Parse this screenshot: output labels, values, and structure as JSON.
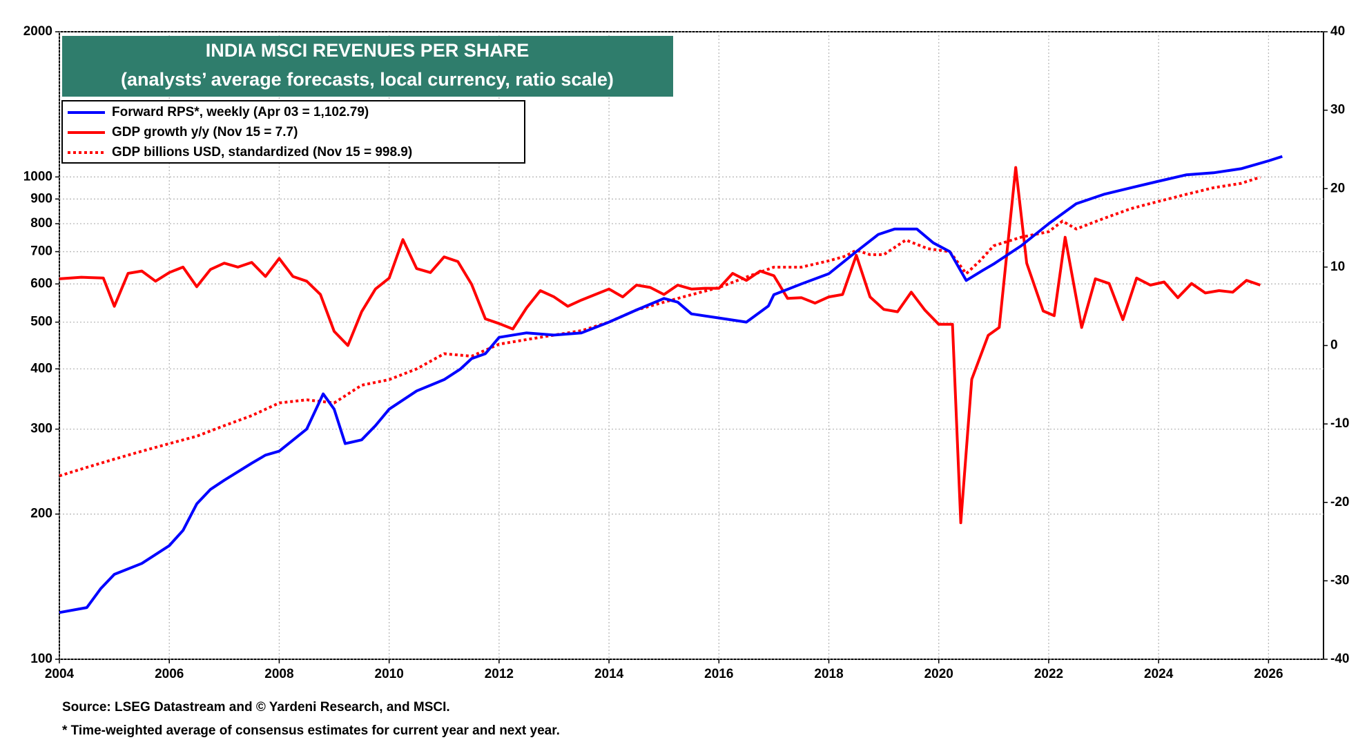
{
  "chart_data": {
    "type": "line",
    "title": "INDIA MSCI REVENUES PER SHARE",
    "subtitle": "(analysts’ average forecasts, local currency, ratio scale)",
    "source": "Source: LSEG Datastream and © Yardeni Research, and MSCI.",
    "note": "* Time-weighted average of consensus estimates for current year and next year.",
    "legend": "upper left",
    "grid": true,
    "log_y": true,
    "xlim": [
      2004,
      2027
    ],
    "xticks": [
      2004,
      2006,
      2008,
      2010,
      2012,
      2014,
      2016,
      2018,
      2020,
      2022,
      2024,
      2026
    ],
    "ylim": [
      100,
      2000
    ],
    "yticks": [
      100,
      200,
      300,
      400,
      500,
      600,
      700,
      800,
      900,
      1000,
      2000
    ],
    "y2lim": [
      -40,
      40
    ],
    "y2ticks": [
      -40,
      -30,
      -20,
      -10,
      0,
      10,
      20,
      30,
      40
    ],
    "series": [
      {
        "name": "Forward RPS*, weekly (Apr 03 = 1,102.79)",
        "color": "#0000ff",
        "style": "solid",
        "x": [
          2004.0,
          2004.5,
          2004.75,
          2005.0,
          2005.5,
          2006.0,
          2006.25,
          2006.5,
          2006.75,
          2007.0,
          2007.5,
          2007.75,
          2008.0,
          2008.5,
          2008.8,
          2009.0,
          2009.2,
          2009.5,
          2009.75,
          2010.0,
          2010.5,
          2011.0,
          2011.3,
          2011.5,
          2011.75,
          2012.0,
          2012.5,
          2013.0,
          2013.5,
          2014.0,
          2014.5,
          2015.0,
          2015.25,
          2015.5,
          2016.0,
          2016.5,
          2016.9,
          2017.0,
          2017.5,
          2018.0,
          2018.5,
          2018.9,
          2019.2,
          2019.6,
          2019.9,
          2020.2,
          2020.5,
          2020.8,
          2021.0,
          2021.5,
          2022.0,
          2022.5,
          2023.0,
          2023.5,
          2024.0,
          2024.5,
          2025.0,
          2025.5,
          2026.0,
          2026.25
        ],
        "values": [
          125,
          128,
          140,
          150,
          158,
          172,
          185,
          210,
          225,
          235,
          255,
          265,
          270,
          300,
          355,
          330,
          280,
          285,
          305,
          330,
          360,
          380,
          400,
          420,
          430,
          465,
          475,
          470,
          475,
          500,
          530,
          560,
          550,
          520,
          510,
          500,
          540,
          570,
          600,
          630,
          700,
          760,
          780,
          780,
          730,
          700,
          610,
          640,
          660,
          720,
          800,
          880,
          920,
          950,
          980,
          1010,
          1020,
          1040,
          1080,
          1103
        ]
      },
      {
        "name": "GDP growth y/y (Nov 15 = 7.7)",
        "color": "#ff0000",
        "style": "solid",
        "axis": "y2",
        "x": [
          2004.0,
          2004.4,
          2004.8,
          2005.0,
          2005.25,
          2005.5,
          2005.75,
          2006.0,
          2006.25,
          2006.5,
          2006.75,
          2007.0,
          2007.25,
          2007.5,
          2007.75,
          2008.0,
          2008.25,
          2008.5,
          2008.75,
          2009.0,
          2009.25,
          2009.5,
          2009.75,
          2010.0,
          2010.25,
          2010.5,
          2010.75,
          2011.0,
          2011.25,
          2011.5,
          2011.75,
          2012.0,
          2012.25,
          2012.5,
          2012.75,
          2013.0,
          2013.25,
          2013.5,
          2013.75,
          2014.0,
          2014.25,
          2014.5,
          2014.75,
          2015.0,
          2015.25,
          2015.5,
          2015.75,
          2016.0,
          2016.25,
          2016.5,
          2016.75,
          2017.0,
          2017.25,
          2017.5,
          2017.75,
          2018.0,
          2018.25,
          2018.5,
          2018.75,
          2019.0,
          2019.25,
          2019.5,
          2019.75,
          2020.0,
          2020.25,
          2020.4,
          2020.6,
          2020.9,
          2021.1,
          2021.4,
          2021.6,
          2021.9,
          2022.1,
          2022.3,
          2022.6,
          2022.85,
          2023.1,
          2023.35,
          2023.6,
          2023.85,
          2024.1,
          2024.35,
          2024.6,
          2024.85,
          2025.1,
          2025.35,
          2025.6,
          2025.85
        ],
        "values": [
          8.5,
          8.7,
          8.6,
          5,
          9.2,
          9.5,
          8.2,
          9.3,
          10,
          7.5,
          9.7,
          10.5,
          10,
          10.6,
          8.8,
          11.1,
          8.8,
          8.2,
          6.5,
          1.8,
          0,
          4.3,
          7.2,
          8.6,
          13.5,
          9.8,
          9.3,
          11.3,
          10.7,
          7.8,
          3.4,
          2.8,
          2.1,
          4.8,
          7,
          6.2,
          5,
          5.8,
          6.5,
          7.2,
          6.2,
          7.7,
          7.4,
          6.5,
          7.7,
          7.2,
          7.3,
          7.3,
          9.2,
          8.3,
          9.5,
          8.9,
          6,
          6.1,
          5.4,
          6.2,
          6.5,
          11.5,
          6.2,
          4.6,
          4.3,
          6.8,
          4.5,
          2.7,
          2.7,
          -22.6,
          -4.3,
          1.3,
          2.3,
          22.7,
          10.5,
          4.4,
          3.8,
          13.8,
          2.3,
          8.5,
          7.9,
          3.3,
          8.6,
          7.7,
          8.1,
          6.1,
          7.9,
          6.7,
          7.0,
          6.8,
          8.3,
          7.7
        ]
      },
      {
        "name": "GDP billions USD, standardized (Nov 15 = 998.9)",
        "color": "#ff0000",
        "style": "dotted",
        "x": [
          2004.0,
          2004.5,
          2005.0,
          2005.5,
          2006.0,
          2006.5,
          2007.0,
          2007.5,
          2008.0,
          2008.5,
          2009.0,
          2009.5,
          2010.0,
          2010.5,
          2011.0,
          2011.5,
          2012.0,
          2012.5,
          2013.0,
          2013.5,
          2014.0,
          2014.5,
          2015.0,
          2015.5,
          2016.0,
          2016.5,
          2017.0,
          2017.5,
          2018.0,
          2018.3,
          2018.5,
          2018.75,
          2019.0,
          2019.4,
          2019.8,
          2020.2,
          2020.5,
          2020.75,
          2021.0,
          2021.5,
          2022.0,
          2022.25,
          2022.5,
          2023.0,
          2023.5,
          2024.0,
          2024.5,
          2025.0,
          2025.5,
          2025.85
        ],
        "values": [
          240,
          250,
          260,
          270,
          280,
          290,
          305,
          320,
          340,
          345,
          340,
          370,
          380,
          400,
          430,
          425,
          450,
          460,
          470,
          480,
          500,
          530,
          550,
          570,
          590,
          620,
          650,
          650,
          670,
          685,
          705,
          690,
          690,
          740,
          710,
          700,
          630,
          670,
          720,
          750,
          770,
          810,
          780,
          820,
          860,
          890,
          920,
          950,
          970,
          998.9
        ]
      }
    ]
  }
}
